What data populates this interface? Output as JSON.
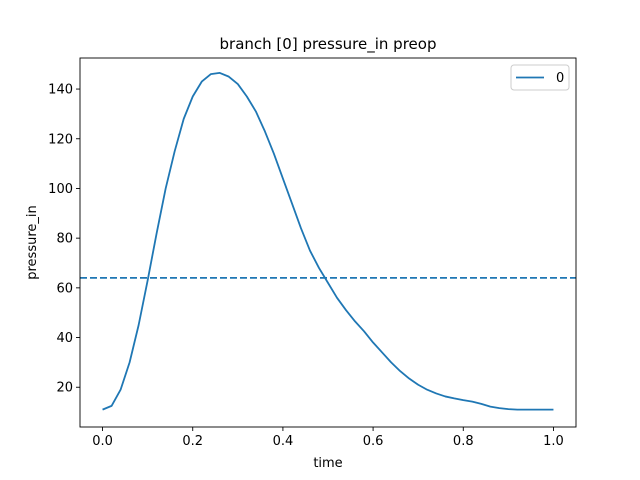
{
  "chart_data": {
    "type": "line",
    "title": "branch [0] pressure_in preop",
    "xlabel": "time",
    "ylabel": "pressure_in",
    "xlim": [
      -0.05,
      1.05
    ],
    "ylim": [
      4,
      152.5
    ],
    "xticks": [
      0.0,
      0.2,
      0.4,
      0.6,
      0.8,
      1.0
    ],
    "xtick_labels": [
      "0.0",
      "0.2",
      "0.4",
      "0.6",
      "0.8",
      "1.0"
    ],
    "yticks": [
      20,
      40,
      60,
      80,
      100,
      120,
      140
    ],
    "ytick_labels": [
      "20",
      "40",
      "60",
      "80",
      "100",
      "120",
      "140"
    ],
    "grid": false,
    "legend": {
      "position": "top-right",
      "entries": [
        "0"
      ]
    },
    "series": [
      {
        "name": "0",
        "color": "#1f77b4",
        "style": "solid",
        "x": [
          0.0,
          0.02,
          0.04,
          0.06,
          0.08,
          0.1,
          0.12,
          0.14,
          0.16,
          0.18,
          0.2,
          0.22,
          0.24,
          0.26,
          0.28,
          0.3,
          0.32,
          0.34,
          0.36,
          0.38,
          0.4,
          0.42,
          0.44,
          0.46,
          0.48,
          0.5,
          0.52,
          0.54,
          0.56,
          0.58,
          0.6,
          0.62,
          0.64,
          0.66,
          0.68,
          0.7,
          0.72,
          0.74,
          0.76,
          0.78,
          0.8,
          0.82,
          0.84,
          0.86,
          0.88,
          0.9,
          0.92,
          0.94,
          0.96,
          0.98,
          1.0
        ],
        "y": [
          11,
          12.5,
          19,
          30,
          45,
          63,
          82,
          100,
          115,
          128,
          137,
          143,
          146,
          146.5,
          145,
          142,
          137,
          131,
          123,
          114,
          104,
          94,
          84,
          75,
          68,
          62,
          56,
          51,
          46.5,
          42.5,
          38,
          34,
          30,
          26.5,
          23.5,
          21,
          19,
          17.5,
          16.3,
          15.5,
          14.8,
          14.2,
          13.3,
          12.2,
          11.6,
          11.2,
          11.0,
          11.0,
          11.0,
          11.0,
          11.0
        ]
      },
      {
        "name": "",
        "color": "#1f77b4",
        "style": "dashed",
        "y_constant": 64
      }
    ]
  }
}
